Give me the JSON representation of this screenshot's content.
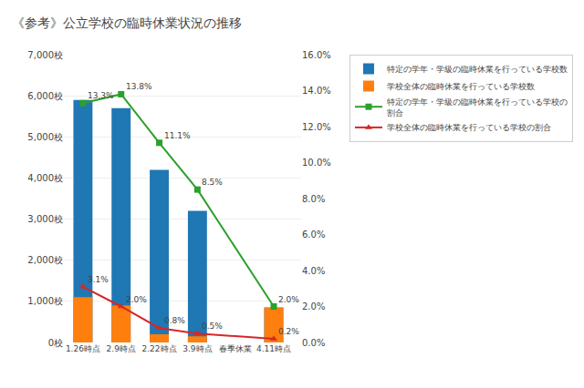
{
  "chart_data": {
    "type": "bar",
    "title": "《参考》公立学校の臨時休業状況の推移",
    "categories": [
      "1.26時点",
      "2.9時点",
      "2.22時点",
      "3.9時点",
      "春季休業",
      "4.11時点"
    ],
    "series": [
      {
        "name": "特定の学年・学級の臨時休業を行っている学校数",
        "type": "bar",
        "values": [
          5900,
          5700,
          4200,
          3200,
          null,
          850
        ]
      },
      {
        "name": "学校全体の臨時休業を行っている学校数",
        "type": "bar",
        "values": [
          1100,
          900,
          200,
          150,
          null,
          850
        ]
      },
      {
        "name": "特定の学年・学級の臨時休業を行っている学校の\n割合",
        "type": "line",
        "axis": "y2",
        "marker": "square",
        "values": [
          0.133,
          0.138,
          0.111,
          0.085,
          null,
          0.02
        ],
        "value_labels": [
          "13.3%",
          "13.8%",
          "11.1%",
          "8.5%",
          null,
          "2.0%"
        ],
        "data_labels": true
      },
      {
        "name": "学校全体の臨時休業を行っている学校の割合",
        "type": "line",
        "axis": "y2",
        "marker": "triangle-up",
        "values": [
          0.031,
          0.02,
          0.008,
          0.005,
          null,
          0.002
        ],
        "value_labels": [
          "3.1%",
          "2.0%",
          "0.8%",
          "0.5%",
          null,
          "0.2%"
        ],
        "data_labels": true
      }
    ],
    "ylim": [
      0,
      7000
    ],
    "yticks": [
      {
        "value": 0,
        "label": "0校"
      },
      {
        "value": 1000,
        "label": "1,000校"
      },
      {
        "value": 2000,
        "label": "2,000校"
      },
      {
        "value": 3000,
        "label": "3,000校"
      },
      {
        "value": 4000,
        "label": "4,000校"
      },
      {
        "value": 5000,
        "label": "5,000校"
      },
      {
        "value": 6000,
        "label": "6,000校"
      },
      {
        "value": 7000,
        "label": "7,000校"
      }
    ],
    "y2lim": [
      0.0,
      0.16
    ],
    "y2ticks": [
      {
        "value": 0.0,
        "label": "0.0%"
      },
      {
        "value": 0.02,
        "label": "2.0%"
      },
      {
        "value": 0.04,
        "label": "4.0%"
      },
      {
        "value": 0.06,
        "label": "6.0%"
      },
      {
        "value": 0.08,
        "label": "8.0%"
      },
      {
        "value": 0.1,
        "label": "10.0%"
      },
      {
        "value": 0.12,
        "label": "12.0%"
      },
      {
        "value": 0.14,
        "label": "14.0%"
      },
      {
        "value": 0.16,
        "label": "16.0%"
      }
    ],
    "grid": true,
    "legend": "right"
  }
}
